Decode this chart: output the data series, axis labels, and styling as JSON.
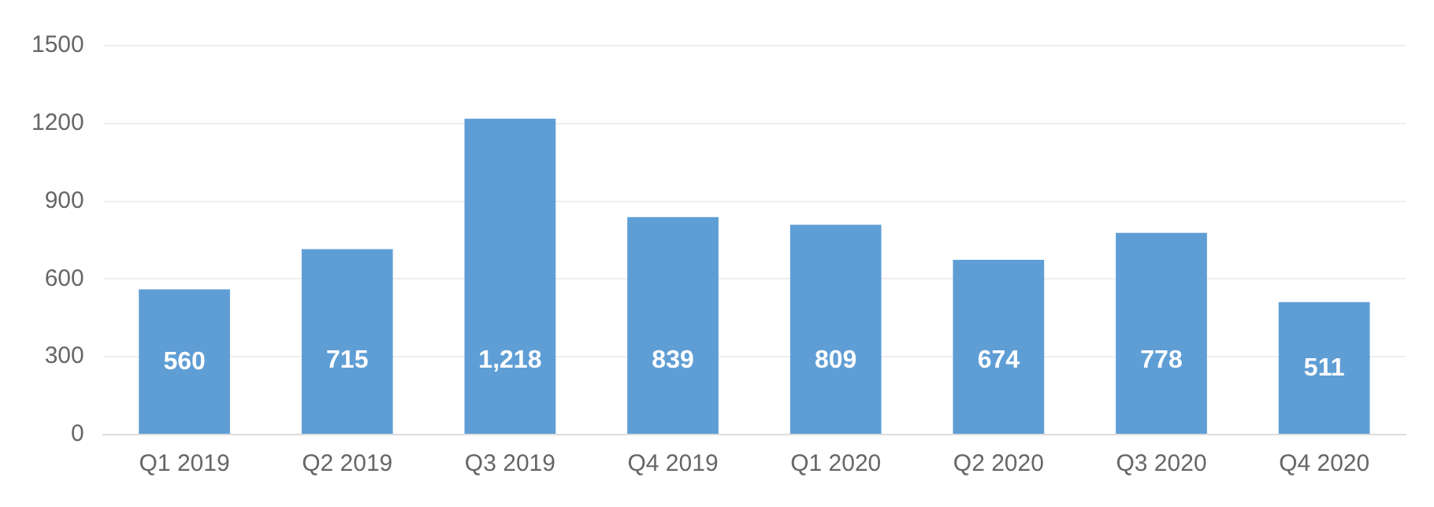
{
  "chart_data": {
    "type": "bar",
    "categories": [
      "Q1 2019",
      "Q2 2019",
      "Q3 2019",
      "Q4 2019",
      "Q1 2020",
      "Q2 2020",
      "Q3 2020",
      "Q4 2020"
    ],
    "values": [
      560,
      715,
      1218,
      839,
      809,
      674,
      778,
      511
    ],
    "value_labels": [
      "560",
      "715",
      "1,218",
      "839",
      "809",
      "674",
      "778",
      "511"
    ],
    "color": "#5f9ed5",
    "ylim": [
      0,
      1500
    ],
    "yticks": [
      0,
      300,
      600,
      900,
      1200,
      1500
    ],
    "grid": "y",
    "legend": false
  }
}
